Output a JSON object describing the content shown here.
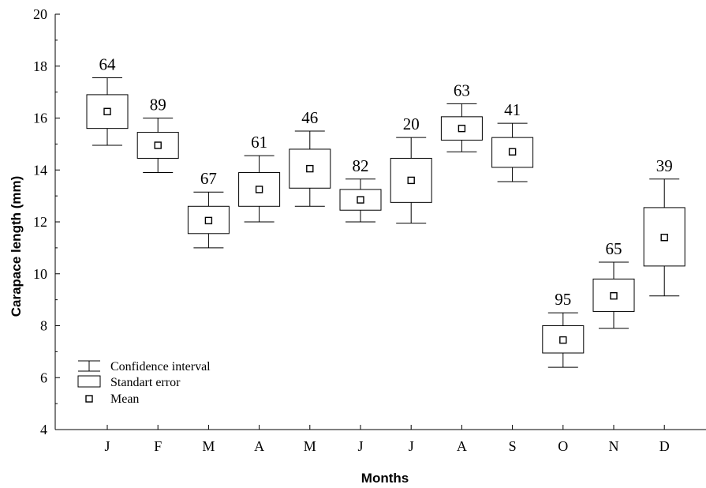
{
  "chart_data": {
    "type": "box",
    "xlabel": "Months",
    "ylabel": "Carapace length (mm)",
    "ylim": [
      4,
      20
    ],
    "yticks": [
      4,
      6,
      8,
      10,
      12,
      14,
      16,
      18,
      20
    ],
    "categories": [
      "J",
      "F",
      "M",
      "A",
      "M",
      "J",
      "J",
      "A",
      "S",
      "O",
      "N",
      "D"
    ],
    "series": [
      {
        "category": "J",
        "n": "64",
        "mean": 16.25,
        "se_low": 15.6,
        "se_high": 16.9,
        "ci_low": 14.95,
        "ci_high": 17.55
      },
      {
        "category": "F",
        "n": "89",
        "mean": 14.95,
        "se_low": 14.45,
        "se_high": 15.45,
        "ci_low": 13.9,
        "ci_high": 16.0
      },
      {
        "category": "M",
        "n": "67",
        "mean": 12.05,
        "se_low": 11.55,
        "se_high": 12.6,
        "ci_low": 11.0,
        "ci_high": 13.15
      },
      {
        "category": "A",
        "n": "61",
        "mean": 13.25,
        "se_low": 12.6,
        "se_high": 13.9,
        "ci_low": 12.0,
        "ci_high": 14.55
      },
      {
        "category": "M",
        "n": "46",
        "mean": 14.05,
        "se_low": 13.3,
        "se_high": 14.8,
        "ci_low": 12.6,
        "ci_high": 15.5
      },
      {
        "category": "J",
        "n": "82",
        "mean": 12.85,
        "se_low": 12.45,
        "se_high": 13.25,
        "ci_low": 12.0,
        "ci_high": 13.65
      },
      {
        "category": "J",
        "n": "20",
        "mean": 13.6,
        "se_low": 12.75,
        "se_high": 14.45,
        "ci_low": 11.95,
        "ci_high": 15.25
      },
      {
        "category": "A",
        "n": "63",
        "mean": 15.6,
        "se_low": 15.15,
        "se_high": 16.05,
        "ci_low": 14.7,
        "ci_high": 16.55
      },
      {
        "category": "S",
        "n": "41",
        "mean": 14.7,
        "se_low": 14.1,
        "se_high": 15.25,
        "ci_low": 13.55,
        "ci_high": 15.8
      },
      {
        "category": "O",
        "n": "95",
        "mean": 7.45,
        "se_low": 6.95,
        "se_high": 8.0,
        "ci_low": 6.4,
        "ci_high": 8.5
      },
      {
        "category": "N",
        "n": "65",
        "mean": 9.15,
        "se_low": 8.55,
        "se_high": 9.8,
        "ci_low": 7.9,
        "ci_high": 10.45
      },
      {
        "category": "D",
        "n": "39",
        "mean": 11.4,
        "se_low": 10.3,
        "se_high": 12.55,
        "ci_low": 9.15,
        "ci_high": 13.65
      }
    ],
    "legend": {
      "position": "bottom-left",
      "items": [
        "Confidence interval",
        "Standart error",
        "Mean"
      ]
    },
    "grid": false
  }
}
